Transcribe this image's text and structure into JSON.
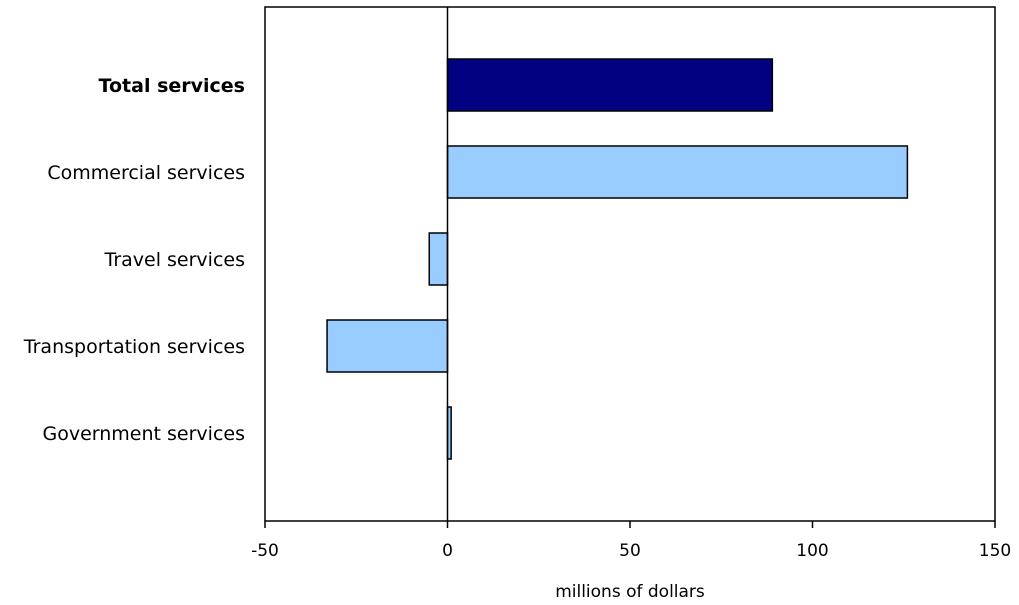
{
  "chart_data": {
    "type": "bar",
    "orientation": "horizontal",
    "categories": [
      "Total services",
      "Commercial services",
      "Travel services",
      "Transportation services",
      "Government services"
    ],
    "emphasized_category": "Total services",
    "values": [
      89,
      126,
      -5,
      -33,
      1
    ],
    "xlabel": "millions of dollars",
    "xlim": [
      -50,
      150
    ],
    "xticks": [
      -50,
      0,
      50,
      100,
      150
    ],
    "grid": false,
    "legend": "none",
    "colors": {
      "total": "#000080",
      "component": "#99ccff",
      "outline": "#000000"
    }
  }
}
